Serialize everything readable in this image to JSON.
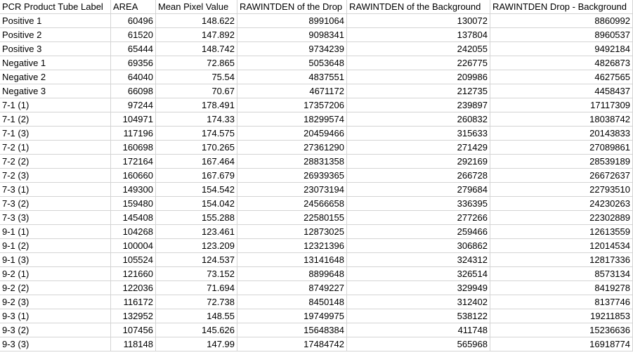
{
  "table": {
    "header": [
      "PCR Product Tube Label",
      "AREA",
      "Mean Pixel Value",
      "RAWINTDEN of the Drop",
      "RAWINTDEN of the Background",
      "RAWINTDEN Drop - Background"
    ],
    "rows": [
      [
        "Positive 1",
        60496,
        148.622,
        8991064,
        130072,
        8860992
      ],
      [
        "Positive 2",
        61520,
        147.892,
        9098341,
        137804,
        8960537
      ],
      [
        "Positive 3",
        65444,
        148.742,
        9734239,
        242055,
        9492184
      ],
      [
        "Negative 1",
        69356,
        72.865,
        5053648,
        226775,
        4826873
      ],
      [
        "Negative 2",
        64040,
        75.54,
        4837551,
        209986,
        4627565
      ],
      [
        "Negative 3",
        66098,
        70.67,
        4671172,
        212735,
        4458437
      ],
      [
        "7-1 (1)",
        97244,
        178.491,
        17357206,
        239897,
        17117309
      ],
      [
        "7-1 (2)",
        104971,
        174.33,
        18299574,
        260832,
        18038742
      ],
      [
        "7-1 (3)",
        117196,
        174.575,
        20459466,
        315633,
        20143833
      ],
      [
        "7-2 (1)",
        160698,
        170.265,
        27361290,
        271429,
        27089861
      ],
      [
        "7-2 (2)",
        172164,
        167.464,
        28831358,
        292169,
        28539189
      ],
      [
        "7-2 (3)",
        160660,
        167.679,
        26939365,
        266728,
        26672637
      ],
      [
        "7-3 (1)",
        149300,
        154.542,
        23073194,
        279684,
        22793510
      ],
      [
        "7-3 (2)",
        159480,
        154.042,
        24566658,
        336395,
        24230263
      ],
      [
        "7-3 (3)",
        145408,
        155.288,
        22580155,
        277266,
        22302889
      ],
      [
        "9-1 (1)",
        104268,
        123.461,
        12873025,
        259466,
        12613559
      ],
      [
        "9-1 (2)",
        100004,
        123.209,
        12321396,
        306862,
        12014534
      ],
      [
        "9-1 (3)",
        105524,
        124.537,
        13141648,
        324312,
        12817336
      ],
      [
        "9-2 (1)",
        121660,
        73.152,
        8899648,
        326514,
        8573134
      ],
      [
        "9-2 (2)",
        122036,
        71.694,
        8749227,
        329949,
        8419278
      ],
      [
        "9-2 (3)",
        116172,
        72.738,
        8450148,
        312402,
        8137746
      ],
      [
        "9-3 (1)",
        132952,
        148.55,
        19749975,
        538122,
        19211853
      ],
      [
        "9-3 (2)",
        107456,
        145.626,
        15648384,
        411748,
        15236636
      ],
      [
        "9-3 (3)",
        118148,
        147.99,
        17484742,
        565968,
        16918774
      ]
    ]
  }
}
